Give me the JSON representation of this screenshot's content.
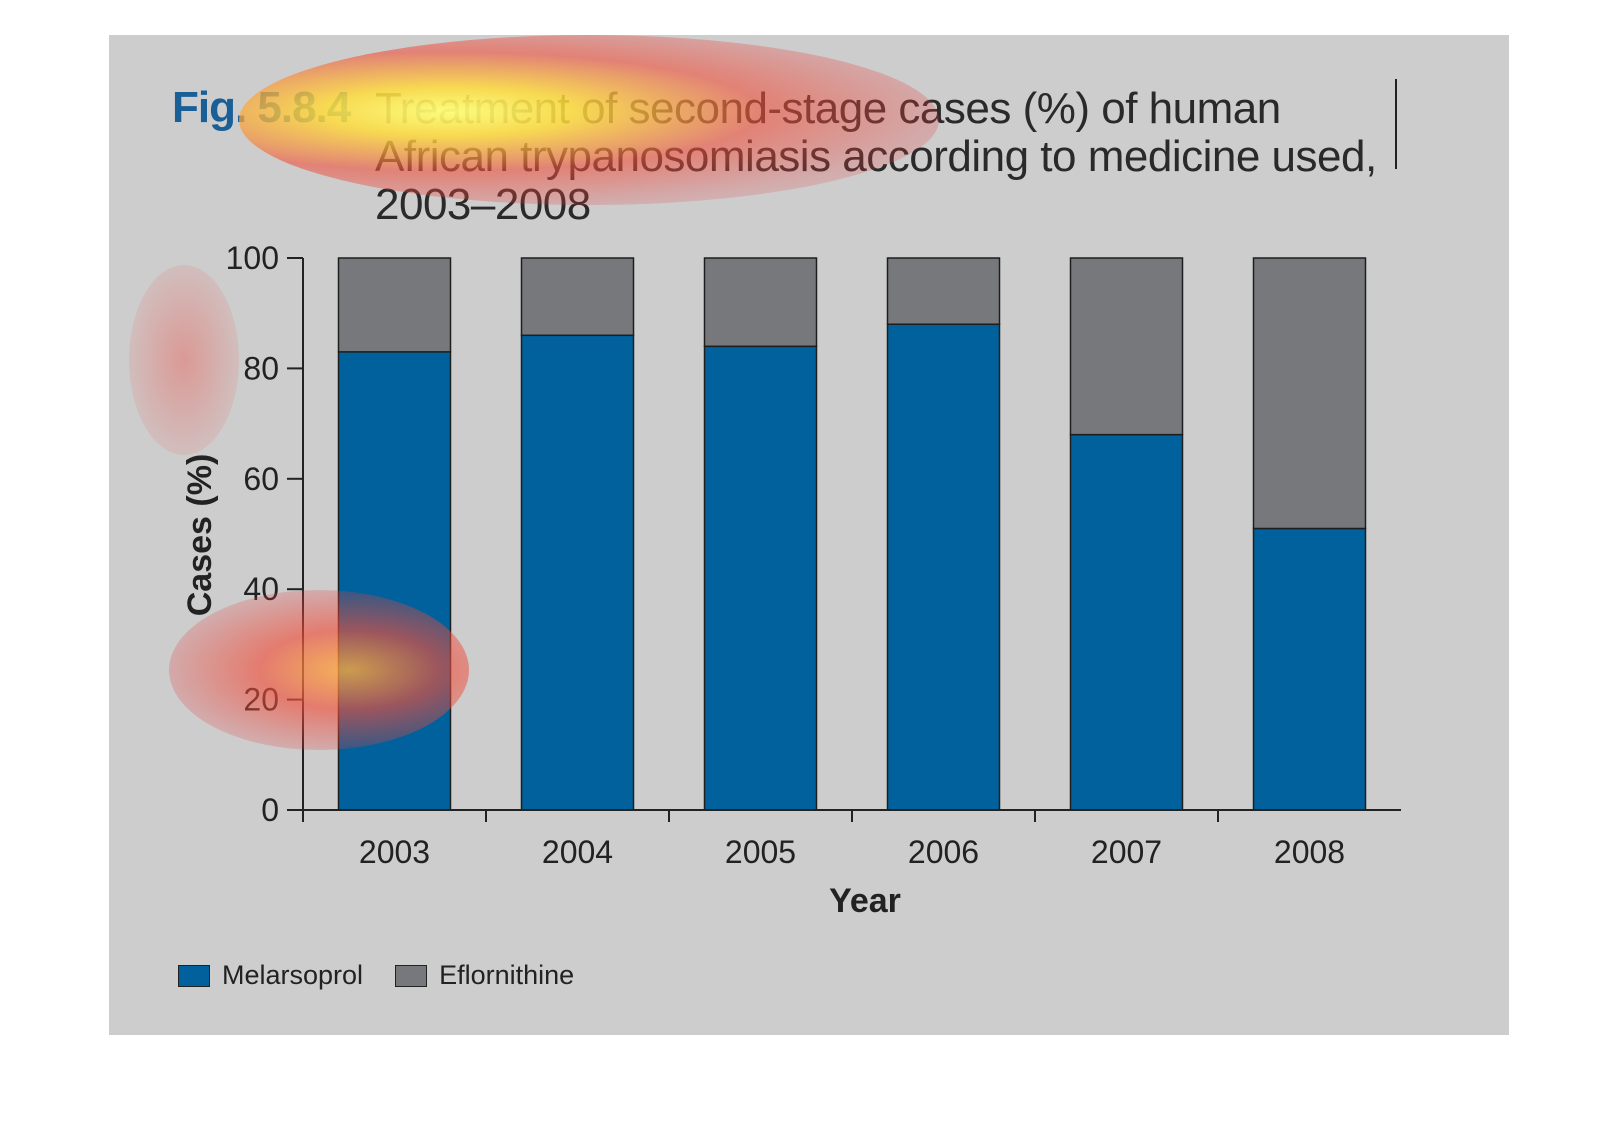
{
  "figure": {
    "label": "Fig. 5.8.4",
    "title_lines": [
      "Treatment of second-stage cases (%) of human",
      "African trypanosomiasis according to medicine used,",
      "2003–2008"
    ]
  },
  "colors": {
    "panel_background": "#cdcdcd",
    "melarsoprol": "#00619c",
    "eflornithine": "#77787b",
    "figure_label": "#1a5f96"
  },
  "chart_data": {
    "type": "bar",
    "stacked": true,
    "categories": [
      "2003",
      "2004",
      "2005",
      "2006",
      "2007",
      "2008"
    ],
    "series": [
      {
        "name": "Melarsoprol",
        "color": "#00619c",
        "values": [
          83,
          86,
          84,
          88,
          68,
          51
        ]
      },
      {
        "name": "Eflornithine",
        "color": "#77787b",
        "values": [
          17,
          14,
          16,
          12,
          32,
          49
        ]
      }
    ],
    "xlabel": "Year",
    "ylabel": "Cases (%)",
    "ylim": [
      0,
      100
    ],
    "yticks": [
      0,
      20,
      40,
      60,
      80,
      100
    ],
    "grid": false,
    "legend_position": "bottom-left"
  }
}
